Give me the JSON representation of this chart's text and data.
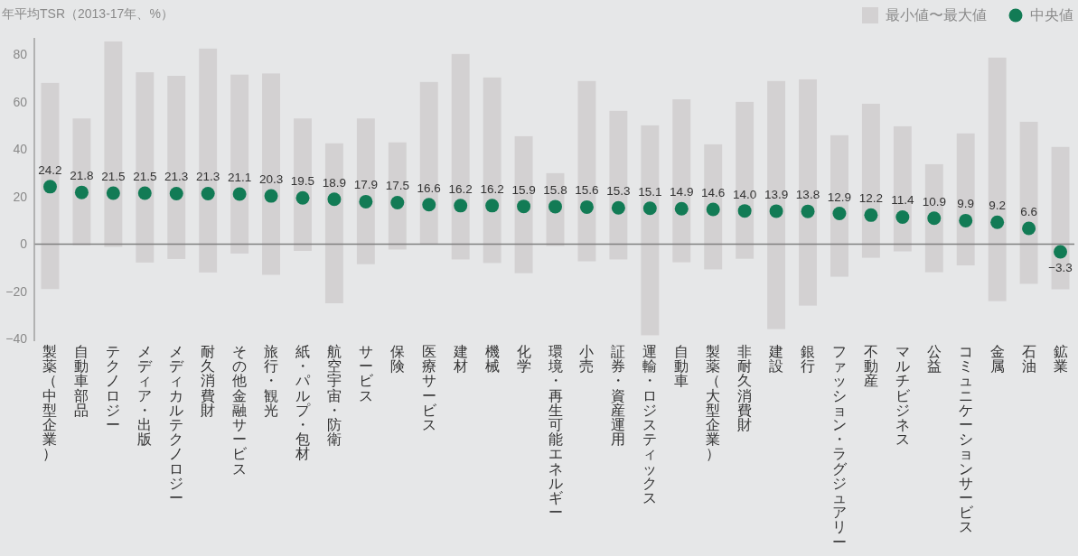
{
  "chart_data": {
    "type": "bar",
    "ylabel": "年平均TSR（2013-17年、%）",
    "categories": [
      "製薬（中型企業）",
      "自動車部品",
      "テクノロジー",
      "メディア・出版",
      "メディカルテクノロジー",
      "耐久消費財",
      "その他金融サービス",
      "旅行・観光",
      "紙・パルプ・包材",
      "航空宇宙・防衛",
      "サービス",
      "保険",
      "医療サービス",
      "建材",
      "機械",
      "化学",
      "環境・再生可能エネルギー",
      "小売",
      "証券・資産運用",
      "運輸・ロジスティックス",
      "自動車",
      "製薬（大型企業）",
      "非耐久消費財",
      "建設",
      "銀行",
      "ファッション・ラグジュアリー",
      "不動産",
      "マルチビジネス",
      "公益",
      "コミュニケーションサービス",
      "金属",
      "石油",
      "鉱業"
    ],
    "series": [
      {
        "name": "最小値〜最大値",
        "type": "bar",
        "color": "#d3d1d2",
        "base": [
          -19,
          -0.5,
          -1.2,
          -7.8,
          -6.3,
          -12,
          -4,
          -13,
          -2.9,
          -25,
          -8.5,
          -2.3,
          0,
          -6.5,
          -8,
          -12.3,
          -0.8,
          -7.3,
          -6.5,
          -38.5,
          -7.7,
          -10.7,
          -6.2,
          -35.9,
          -26,
          -13.8,
          -5.8,
          -3.1,
          -11.9,
          -9,
          -24.1,
          -16.8,
          -19.1
        ],
        "values": [
          87,
          53.5,
          86.7,
          80.3,
          77.3,
          94.5,
          75.5,
          85,
          55.9,
          67.5,
          61.5,
          45.2,
          68.4,
          86.7,
          78.3,
          57.8,
          30.7,
          76.1,
          62.7,
          88.6,
          68.8,
          52.8,
          66.2,
          104.7,
          95.5,
          59.7,
          65,
          52.8,
          45.6,
          55.7,
          102.8,
          68.4,
          60.1
        ]
      },
      {
        "name": "中央値",
        "type": "scatter",
        "color": "#127b55",
        "marker": "circle",
        "values": [
          24.2,
          21.8,
          21.5,
          21.5,
          21.3,
          21.3,
          21.1,
          20.3,
          19.5,
          18.9,
          17.9,
          17.5,
          16.6,
          16.2,
          16.2,
          15.9,
          15.8,
          15.6,
          15.3,
          15.1,
          14.9,
          14.6,
          14.0,
          13.9,
          13.8,
          12.9,
          12.2,
          11.4,
          10.9,
          9.9,
          9.2,
          6.6,
          -3.3
        ],
        "value_labels": [
          "24.2",
          "21.8",
          "21.5",
          "21.5",
          "21.3",
          "21.3",
          "21.1",
          "20.3",
          "19.5",
          "18.9",
          "17.9",
          "17.5",
          "16.6",
          "16.2",
          "16.2",
          "15.9",
          "15.8",
          "15.6",
          "15.3",
          "15.1",
          "14.9",
          "14.6",
          "14.0",
          "13.9",
          "13.8",
          "12.9",
          "12.2",
          "11.4",
          "10.9",
          "9.9",
          "9.2",
          "6.6",
          "−3.3"
        ]
      }
    ],
    "ylim": [
      -41,
      87
    ],
    "yticks": [
      {
        "value": -40,
        "label": "−40"
      },
      {
        "value": -20,
        "label": "−20"
      },
      0,
      20,
      40,
      60,
      80
    ],
    "ref_lines": [
      {
        "axis": "y",
        "value": 0,
        "color": "#808080"
      }
    ],
    "grid": false,
    "legend": "top right"
  }
}
